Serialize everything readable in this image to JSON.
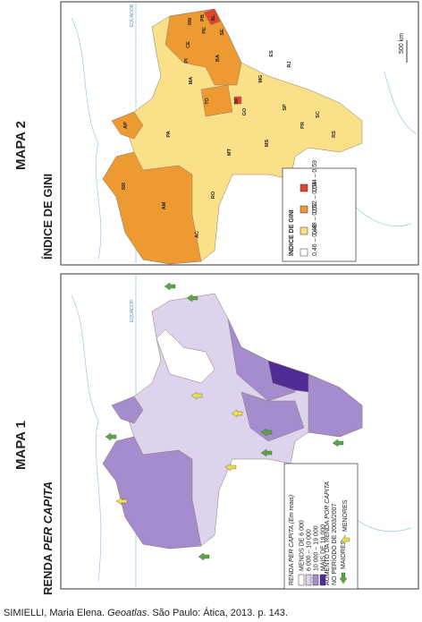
{
  "map_2": {
    "heading": "MAPA 2",
    "subject": "ÍNDICE DE GINI",
    "equator": "EQUADOR",
    "scale": "500 km",
    "states": [
      "RR",
      "AP",
      "AM",
      "PA",
      "MA",
      "CE",
      "RN",
      "PB",
      "PE",
      "AL",
      "SE",
      "PI",
      "BA",
      "TO",
      "DF",
      "GO",
      "MG",
      "ES",
      "RJ",
      "SP",
      "MS",
      "MT",
      "RO",
      "AC",
      "PR",
      "SC",
      "RS"
    ],
    "legend": {
      "title": "ÍNDICE DE GINI",
      "items": [
        {
          "label": "0,46 – 0,48",
          "color": "#ffffff"
        },
        {
          "label": "0,48 – 0,52",
          "color": "#fbe08a"
        },
        {
          "label": "0,52 – 0,54",
          "color": "#ee9a33"
        },
        {
          "label": "0,54 – 0,59",
          "color": "#e0452a"
        }
      ]
    }
  },
  "map_1": {
    "heading": "MAPA 1",
    "subject": [
      "RENDA ",
      "PER CAPITA"
    ],
    "equator": "EQUADOR",
    "legend": {
      "title": [
        "RENDA ",
        "PER CAPITA",
        " (Em reais)"
      ],
      "items": [
        {
          "label": "MENOS DE 6 000",
          "color": "#ffffff"
        },
        {
          "label": "6 000 – 10 000",
          "color": "#ddd3ec"
        },
        {
          "label": "10 000 – 19 000",
          "color": "#a58ccf"
        },
        {
          "label": "MAIS DE 19 000",
          "color": "#4f2d94"
        }
      ],
      "increase_title": [
        "AUMENTO DA RENDA ",
        "POR CAPITA"
      ],
      "increase_period": "NO PERÍODO DE 2003/2007",
      "arrows": [
        "MAIORES",
        "MENORES"
      ]
    }
  },
  "source": [
    "SIMIELLI, Maria Elena. ",
    "Geoatlas",
    ". São Paulo: Ática, 2013. p. 143."
  ]
}
